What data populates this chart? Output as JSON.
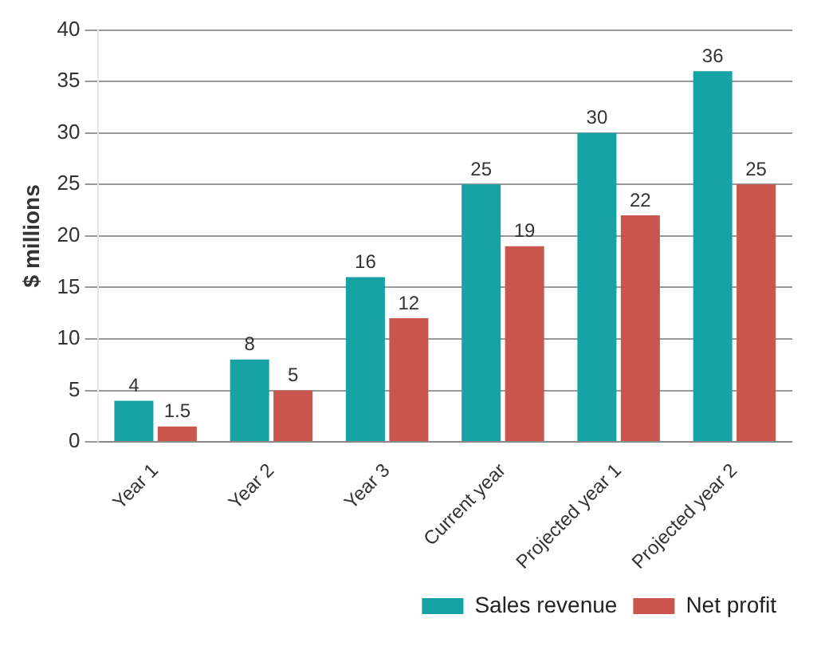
{
  "chart_data": {
    "type": "bar",
    "ylabel": "$ millions",
    "categories": [
      "Year 1",
      "Year 2",
      "Year 3",
      "Current year",
      "Projected year 1",
      "Projected year 2"
    ],
    "series": [
      {
        "name": "Sales revenue",
        "color": "#17a3a5",
        "values": [
          4,
          8,
          16,
          25,
          30,
          36
        ]
      },
      {
        "name": "Net profit",
        "color": "#c9554c",
        "values": [
          1.5,
          5,
          12,
          19,
          22,
          25
        ]
      }
    ],
    "ylim": [
      0,
      40
    ],
    "yticks": [
      0,
      5,
      10,
      15,
      20,
      25,
      30,
      35,
      40
    ],
    "grid": "y",
    "legend": "bottom right",
    "data_labels": true
  }
}
